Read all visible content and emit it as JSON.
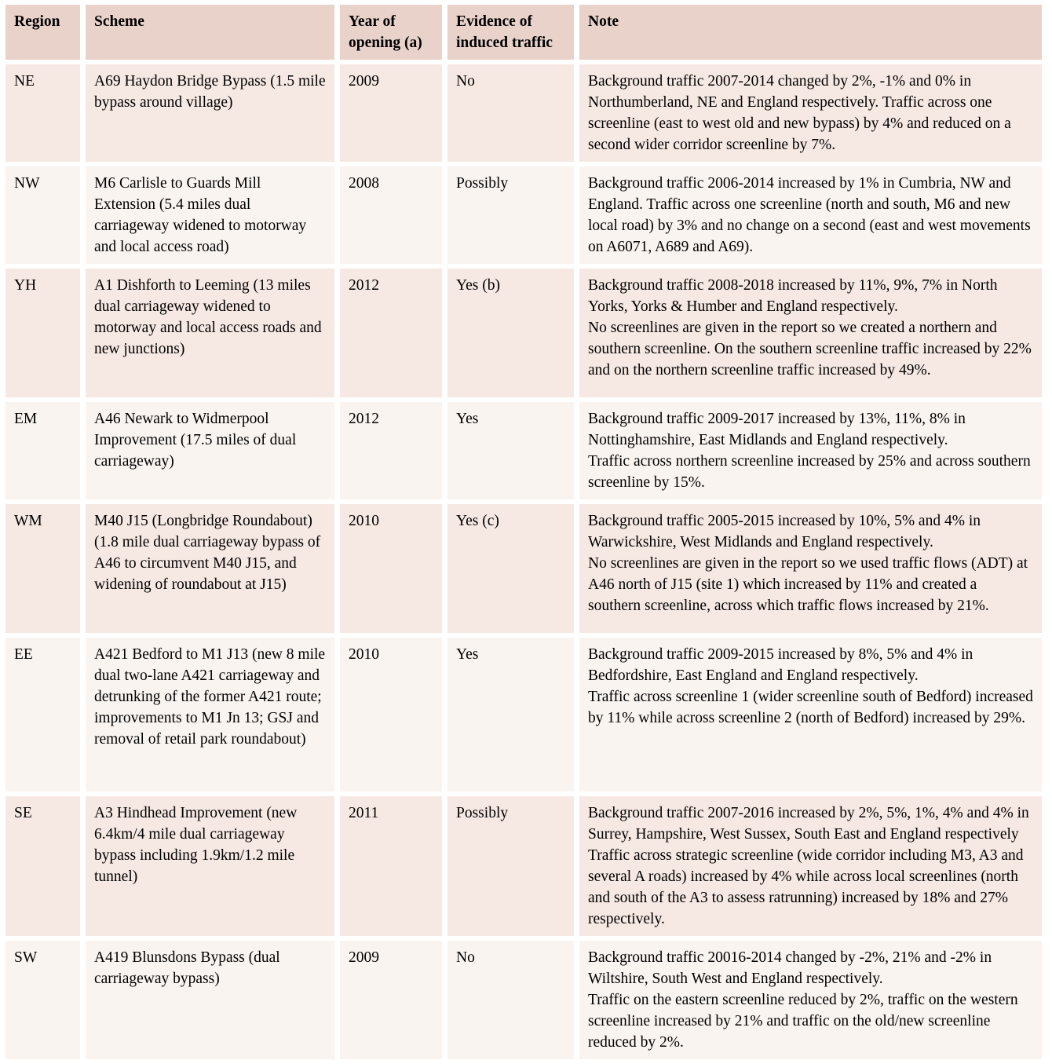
{
  "colors": {
    "header_bg": "#e9d2ca",
    "row_odd_bg": "#f6e8e3",
    "row_even_bg": "#faf4f0",
    "gutter_bg": "#ffffff",
    "text": "#000000"
  },
  "table": {
    "columns": [
      {
        "label": "Region"
      },
      {
        "label": "Scheme"
      },
      {
        "label": "Year of opening (a)"
      },
      {
        "label": "Evidence of induced traffic"
      },
      {
        "label": "Note"
      }
    ],
    "rows": [
      {
        "region": "NE",
        "scheme": "A69 Haydon Bridge Bypass (1.5 mile bypass around village)",
        "year": "2009",
        "evidence": "No",
        "note": "Background traffic 2007-2014 changed by 2%, -1% and 0% in Northumberland, NE and England respectively. Traffic across one screenline (east to west old and new bypass) by 4% and reduced on a second wider corridor screenline by 7%."
      },
      {
        "region": "NW",
        "scheme": "M6 Carlisle to Guards Mill Extension (5.4 miles dual carriageway widened to motorway and local access road)",
        "year": "2008",
        "evidence": "Possibly",
        "note": "Background traffic 2006-2014 increased by 1% in Cumbria, NW and England. Traffic across one screenline (north and south, M6 and new local road) by 3% and no change on a second (east and west movements on A6071, A689 and A69)."
      },
      {
        "region": "YH",
        "scheme": "A1 Dishforth to Leeming (13 miles dual carriageway widened to motorway and local access roads and new junctions)",
        "year": "2012",
        "evidence": "Yes (b)",
        "note": "Background traffic 2008-2018 increased by 11%, 9%, 7% in North Yorks, Yorks & Humber and England respectively.\nNo screenlines are given in the report so we created a northern and southern screenline. On the southern screenline traffic increased by 22% and on the northern screenline traffic increased by 49%."
      },
      {
        "region": "EM",
        "scheme": "A46 Newark to Widmerpool Improvement (17.5 miles of dual carriageway)",
        "year": "2012",
        "evidence": "Yes",
        "note": "Background traffic 2009-2017 increased by 13%, 11%, 8% in Nottinghamshire, East Midlands and England respectively.\nTraffic across northern screenline increased by 25% and across southern screenline by 15%."
      },
      {
        "region": "WM",
        "scheme": "M40 J15 (Longbridge Roundabout) (1.8 mile dual carriageway bypass of A46 to circumvent M40 J15, and widening of roundabout at J15)",
        "year": "2010",
        "evidence": "Yes (c)",
        "note": "Background traffic 2005-2015 increased by 10%, 5% and 4% in Warwickshire, West Midlands and England respectively.\nNo screenlines are given in the report so we used traffic flows (ADT) at A46 north of J15 (site 1) which increased by 11% and created a southern screenline, across which traffic flows increased by 21%."
      },
      {
        "region": "EE",
        "scheme": "A421 Bedford to M1 J13 (new 8 mile dual two-lane A421 carriageway and detrunking of the former A421 route; improvements to M1 Jn 13; GSJ and removal of retail park roundabout)",
        "year": "2010",
        "evidence": "Yes",
        "note": "Background traffic 2009-2015 increased by 8%, 5% and 4% in Bedfordshire, East England and England respectively.\nTraffic across screenline 1 (wider screenline south of Bedford) increased by 11% while across screenline 2 (north of Bedford) increased by 29%."
      },
      {
        "region": "SE",
        "scheme": "A3 Hindhead Improvement (new 6.4km/4 mile dual carriageway bypass including 1.9km/1.2 mile tunnel)",
        "year": "2011",
        "evidence": "Possibly",
        "note": "Background traffic 2007-2016 increased by 2%, 5%, 1%, 4% and 4% in Surrey, Hampshire, West Sussex, South East and England respectively Traffic across strategic screenline (wide corridor including M3, A3 and several A roads) increased by 4% while across local screenlines (north and south of the A3 to assess ratrunning) increased by 18% and 27% respectively."
      },
      {
        "region": "SW",
        "scheme": "A419 Blunsdons Bypass (dual carriageway bypass)",
        "year": "2009",
        "evidence": "No",
        "note": "Background traffic 20016-2014 changed by -2%, 21% and -2% in Wiltshire, South West and England respectively.\nTraffic on the eastern screenline reduced by 2%, traffic on the western screenline increased by 21% and traffic on the old/new screenline reduced by 2%."
      }
    ]
  }
}
